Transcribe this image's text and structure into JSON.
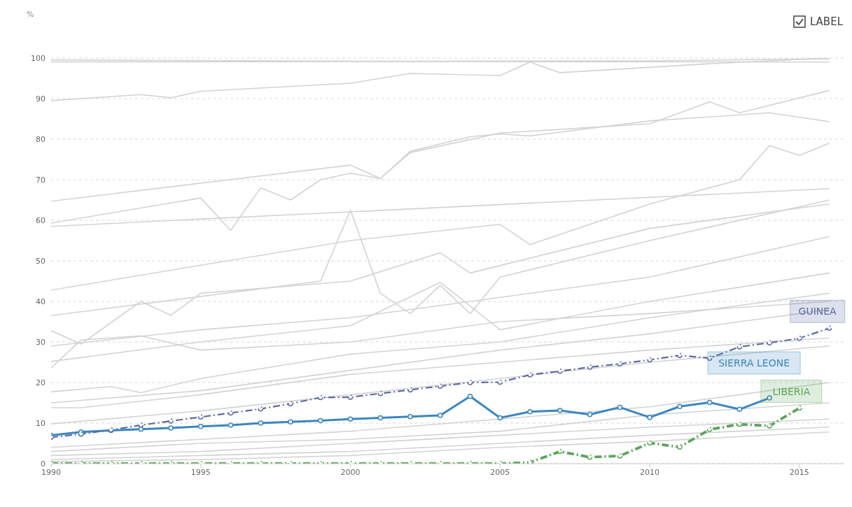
{
  "chart_data": {
    "type": "line",
    "ylabel": "%",
    "annotations": [
      "LABEL"
    ],
    "xlim": [
      1990,
      2016.5
    ],
    "xticks": [
      1990,
      1995,
      2000,
      2005,
      2010,
      2015
    ],
    "ylim": [
      0,
      100
    ],
    "yticks": [
      0,
      10,
      20,
      30,
      40,
      50,
      60,
      70,
      80,
      90,
      100
    ],
    "grid": "y",
    "marker": "none",
    "line_style": "solid",
    "series": [
      {
        "color": "#d3d3d3",
        "x": [
          1990,
          2000,
          2016
        ],
        "values": [
          99.5,
          99.2,
          99
        ]
      },
      {
        "color": "#d3d3d3",
        "x": [
          1990,
          2010,
          2016
        ],
        "values": [
          99,
          99.3,
          99.8
        ]
      },
      {
        "color": "#d3d3d3",
        "x": [
          1990,
          1993,
          1994,
          1995,
          2000,
          2002,
          2005,
          2006,
          2007,
          2012,
          2016
        ],
        "values": [
          89.5,
          91,
          90.2,
          91.8,
          93.8,
          96.2,
          95.7,
          99,
          96.4,
          98.6,
          100
        ]
      },
      {
        "color": "#d3d3d3",
        "x": [
          1990,
          2000,
          2001,
          2002,
          2005,
          2010,
          2012,
          2013,
          2016
        ],
        "values": [
          64.7,
          73.6,
          70.3,
          76.7,
          81.5,
          83.8,
          89.2,
          86.5,
          92
        ]
      },
      {
        "color": "#d3d3d3",
        "x": [
          1990,
          1995,
          1996,
          1997,
          1998,
          1999,
          2000,
          2001,
          2002,
          2004,
          2005,
          2006,
          2010,
          2014,
          2016
        ],
        "values": [
          59.3,
          65.5,
          57.5,
          68,
          65,
          70,
          71.6,
          70.3,
          77,
          80.6,
          81.3,
          80.8,
          84.5,
          86.5,
          84.3
        ]
      },
      {
        "color": "#d3d3d3",
        "x": [
          1990,
          2016
        ],
        "values": [
          58.5,
          67.8
        ]
      },
      {
        "color": "#d3d3d3",
        "x": [
          1990,
          2000,
          2005,
          2006,
          2010,
          2013,
          2014,
          2015,
          2016
        ],
        "values": [
          42.8,
          55,
          59,
          54,
          64,
          70,
          78.4,
          76,
          79
        ]
      },
      {
        "color": "#d3d3d3",
        "x": [
          1990,
          1999,
          2000,
          2001,
          2002,
          2003,
          2004,
          2005,
          2010,
          2016
        ],
        "values": [
          36.5,
          45,
          62.5,
          42,
          37,
          44,
          37,
          46,
          55,
          65
        ]
      },
      {
        "color": "#d3d3d3",
        "x": [
          1990,
          1991,
          1993,
          1994,
          1995,
          2000,
          2003,
          2004,
          2010,
          2016
        ],
        "values": [
          32.8,
          29.5,
          40,
          36.6,
          42,
          45,
          52,
          47,
          58,
          64
        ]
      },
      {
        "color": "#d3d3d3",
        "x": [
          1990,
          1995,
          2000,
          2005,
          2010,
          2016
        ],
        "values": [
          29,
          33,
          36,
          41,
          46,
          56
        ]
      },
      {
        "color": "#d3d3d3",
        "x": [
          1990,
          1995,
          2000,
          2003,
          2005,
          2010,
          2016
        ],
        "values": [
          25.2,
          30,
          34,
          44.7,
          33,
          40,
          47
        ]
      },
      {
        "color": "#d3d3d3",
        "x": [
          1990,
          1991,
          1993,
          1995,
          2000,
          2005,
          2010,
          2016
        ],
        "values": [
          23.6,
          30.5,
          31.5,
          28,
          30,
          35,
          37,
          40
        ]
      },
      {
        "color": "#d3d3d3",
        "x": [
          1990,
          1992,
          1993,
          1995,
          2000,
          2005,
          2010,
          2016
        ],
        "values": [
          17.7,
          19,
          17.5,
          21,
          27,
          30,
          36,
          42
        ]
      },
      {
        "color": "#d3d3d3",
        "x": [
          1990,
          1995,
          2000,
          2005,
          2010,
          2016
        ],
        "values": [
          15,
          18,
          23,
          28,
          32,
          38
        ]
      },
      {
        "color": "#d3d3d3",
        "x": [
          1990,
          1991,
          1995,
          2000,
          2005,
          2010,
          2016
        ],
        "values": [
          13.8,
          13.8,
          17,
          22,
          25,
          28,
          31
        ]
      },
      {
        "color": "#d3d3d3",
        "x": [
          1990,
          1995,
          2000,
          2005,
          2010,
          2016
        ],
        "values": [
          9.8,
          13,
          17,
          21,
          25,
          29
        ]
      },
      {
        "color": "#d3d3d3",
        "x": [
          1990,
          1995,
          2000,
          2005,
          2010,
          2016
        ],
        "values": [
          4,
          6,
          8,
          11,
          14,
          20
        ]
      },
      {
        "color": "#d3d3d3",
        "x": [
          1990,
          1995,
          2000,
          2005,
          2010,
          2016
        ],
        "values": [
          3,
          5,
          6,
          8,
          12,
          15
        ]
      },
      {
        "color": "#d3d3d3",
        "x": [
          1990,
          1995,
          2000,
          2005,
          2010,
          2016
        ],
        "values": [
          2,
          3,
          5,
          7,
          9,
          11
        ]
      },
      {
        "color": "#d3d3d3",
        "x": [
          1990,
          1995,
          2000,
          2005,
          2010,
          2016
        ],
        "values": [
          1,
          2,
          3,
          5,
          7,
          9
        ]
      },
      {
        "color": "#d3d3d3",
        "x": [
          1990,
          1995,
          2000,
          2005,
          2010,
          2016
        ],
        "values": [
          0.5,
          1,
          2,
          4,
          5.5,
          7.8
        ]
      },
      {
        "name": "GUINEA",
        "color": "#5b6aa5",
        "marker": "circle",
        "line_style": "dashed",
        "x": [
          1990,
          1991,
          1992,
          1993,
          1994,
          1995,
          1996,
          1997,
          1998,
          1999,
          2000,
          2001,
          2002,
          2003,
          2004,
          2005,
          2006,
          2007,
          2008,
          2009,
          2010,
          2011,
          2012,
          2013,
          2014,
          2015,
          2016
        ],
        "values": [
          6.5,
          7.3,
          8.3,
          9.5,
          10.5,
          11.5,
          12.5,
          13.5,
          14.8,
          16.3,
          16.4,
          17.3,
          18.2,
          19.1,
          20.0,
          20.1,
          21.9,
          22.8,
          23.8,
          24.6,
          25.6,
          26.7,
          26.0,
          28.8,
          29.8,
          30.9,
          33.4
        ]
      },
      {
        "name": "SIERRA LEONE",
        "color": "#3a86c0",
        "marker": "circle",
        "line_style": "solid",
        "x": [
          1990,
          1991,
          1992,
          1993,
          1994,
          1995,
          1996,
          1997,
          1998,
          1999,
          2000,
          2001,
          2002,
          2003,
          2004,
          2005,
          2006,
          2007,
          2008,
          2009,
          2010,
          2011,
          2012,
          2013,
          2014
        ],
        "values": [
          7,
          7.8,
          8.2,
          8.5,
          8.8,
          9.2,
          9.5,
          10,
          10.3,
          10.6,
          11.0,
          11.3,
          11.6,
          11.9,
          16.6,
          11.3,
          12.8,
          13.1,
          12.1,
          13.9,
          11.4,
          14.1,
          15.1,
          13.4,
          16.2
        ]
      },
      {
        "name": "LIBERIA",
        "color": "#5aa55a",
        "marker": "circle",
        "line_style": "dashed",
        "x": [
          1990,
          1991,
          1992,
          1993,
          1994,
          1995,
          1996,
          1997,
          1998,
          1999,
          2000,
          2001,
          2002,
          2003,
          2004,
          2005,
          2006,
          2007,
          2008,
          2009,
          2010,
          2011,
          2012,
          2013,
          2014,
          2015
        ],
        "values": [
          0,
          0,
          0,
          0,
          0,
          0,
          0,
          0,
          0,
          0,
          0,
          0,
          0,
          0,
          0,
          0,
          0.3,
          3.0,
          1.6,
          1.9,
          5.1,
          4.1,
          8.4,
          9.7,
          9.3,
          13.7
        ]
      }
    ]
  }
}
